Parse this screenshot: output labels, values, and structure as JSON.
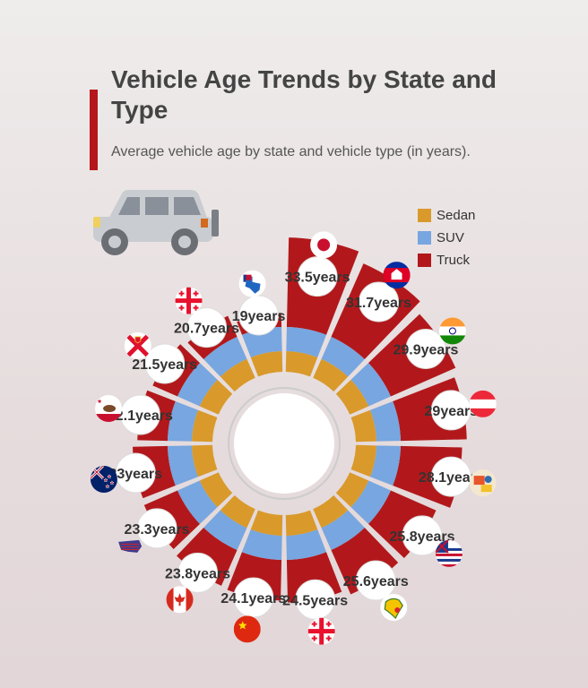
{
  "title": "Vehicle Age Trends by State and Type",
  "subtitle": "Average vehicle age by state and vehicle type (in years).",
  "icons": {
    "hero": "car-icon"
  },
  "colors": {
    "sedan": "#d99a2b",
    "suv": "#77a6e0",
    "truck": "#b2181b",
    "accent": "#b5161b"
  },
  "legend": {
    "position": "top-right",
    "items": [
      {
        "label": "Sedan",
        "color": "#d99a2b"
      },
      {
        "label": "SUV",
        "color": "#77a6e0"
      },
      {
        "label": "Truck",
        "color": "#b2181b"
      }
    ]
  },
  "chart_data": {
    "type": "radial-stacked-bar",
    "unit": "years",
    "series": [
      {
        "name": "Sedan",
        "color": "#d99a2b"
      },
      {
        "name": "SUV",
        "color": "#77a6e0"
      },
      {
        "name": "Truck",
        "color": "#b2181b"
      }
    ],
    "categories": [
      {
        "label": "33.5years",
        "total": 33.5,
        "flag": "flag-japan"
      },
      {
        "label": "31.7years",
        "total": 31.7,
        "flag": "flag-cambodia"
      },
      {
        "label": "29.9years",
        "total": 29.9,
        "flag": "flag-india"
      },
      {
        "label": "29years",
        "total": 29.0,
        "flag": "flag-austria"
      },
      {
        "label": "28.1years",
        "total": 28.1,
        "flag": "flag-state-seal"
      },
      {
        "label": "25.8years",
        "total": 25.8,
        "flag": "flag-hawaii"
      },
      {
        "label": "25.6years",
        "total": 25.6,
        "flag": "flag-africa-map"
      },
      {
        "label": "24.5years",
        "total": 24.5,
        "flag": "flag-georgia"
      },
      {
        "label": "24.1years",
        "total": 24.1,
        "flag": "flag-china"
      },
      {
        "label": "23.8years",
        "total": 23.8,
        "flag": "flag-canada"
      },
      {
        "label": "23.3years",
        "total": 23.3,
        "flag": "flag-usa-map"
      },
      {
        "label": "23years",
        "total": 23.0,
        "flag": "flag-new-zealand"
      },
      {
        "label": "22.1years",
        "total": 22.1,
        "flag": "flag-california"
      },
      {
        "label": "21.5years",
        "total": 21.5,
        "flag": "flag-jersey"
      },
      {
        "label": "20.7years",
        "total": 20.7,
        "flag": "flag-georgia-cross"
      },
      {
        "label": "19years",
        "total": 19.0,
        "flag": "flag-texas-map"
      }
    ]
  }
}
